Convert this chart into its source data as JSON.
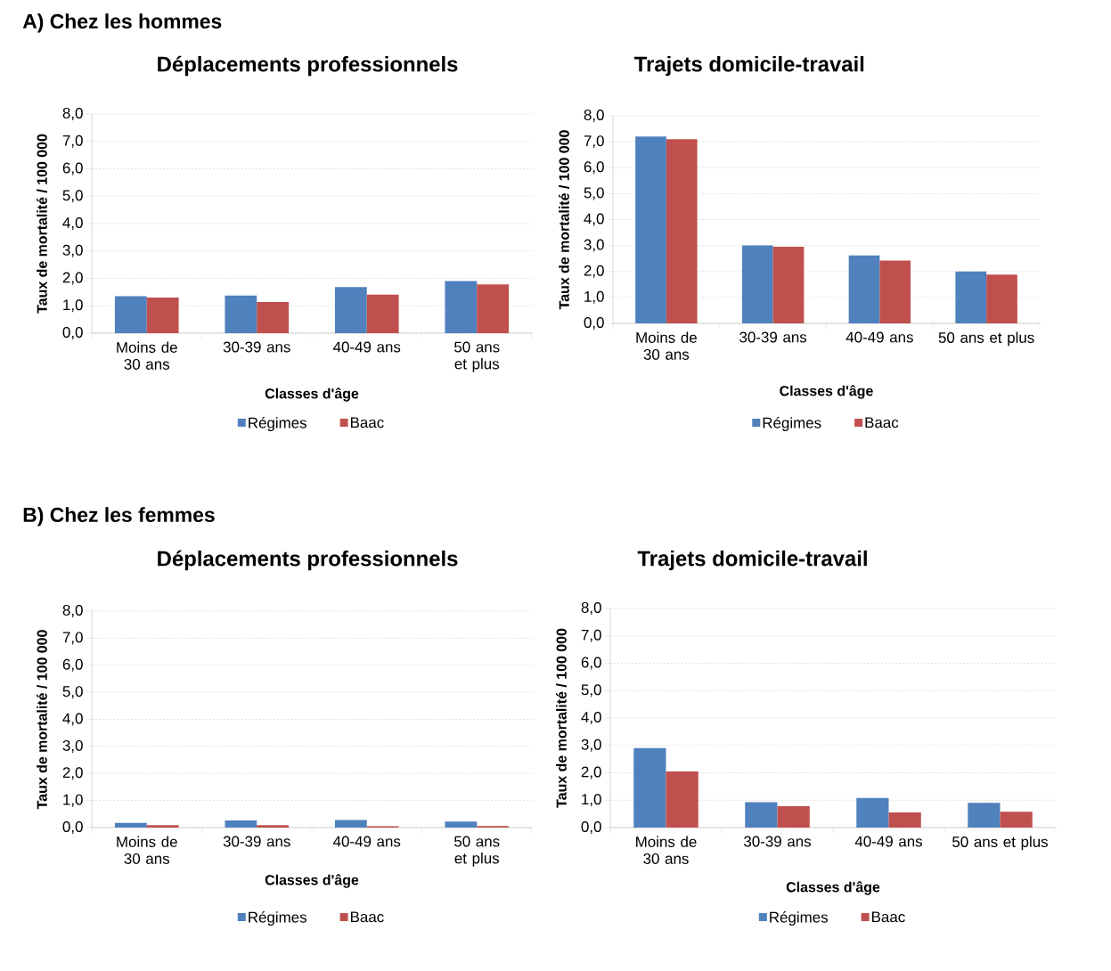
{
  "chart_data": [
    {
      "type": "bar",
      "annotations": [
        "A) Chez les hommes"
      ],
      "title": "Déplacements professionnels",
      "xlabel": "Classes d'âge",
      "ylabel": "Taux de mortalité / 100 000",
      "categories": [
        "Moins de 30 ans",
        "30-39 ans",
        "40-49 ans",
        "50 ans et plus"
      ],
      "ylim": [
        0,
        8
      ],
      "yticks": [
        {
          "value": 0,
          "label": "0,0"
        },
        {
          "value": 1,
          "label": "1,0"
        },
        {
          "value": 2,
          "label": "2,0"
        },
        {
          "value": 3,
          "label": "3,0"
        },
        {
          "value": 4,
          "label": "4,0"
        },
        {
          "value": 5,
          "label": "5,0"
        },
        {
          "value": 6,
          "label": "6,0"
        },
        {
          "value": 7,
          "label": "7,0"
        },
        {
          "value": 8,
          "label": "8,0"
        }
      ],
      "grid": "y",
      "legend": "bottom",
      "series": [
        {
          "name": "Régimes",
          "color": "#4f81bd",
          "values": [
            1.35,
            1.37,
            1.68,
            1.9
          ]
        },
        {
          "name": "Baac",
          "color": "#c0504d",
          "values": [
            1.3,
            1.14,
            1.41,
            1.78
          ]
        }
      ]
    },
    {
      "type": "bar",
      "title": "Trajets domicile-travail",
      "xlabel": "Classes d'âge",
      "ylabel": "Taux de mortalité / 100 000",
      "categories": [
        "Moins de 30 ans",
        "30-39 ans",
        "40-49 ans",
        "50 ans et plus"
      ],
      "ylim": [
        0,
        8
      ],
      "yticks": [
        {
          "value": 0,
          "label": "0,0"
        },
        {
          "value": 1,
          "label": "1,0"
        },
        {
          "value": 2,
          "label": "2,0"
        },
        {
          "value": 3,
          "label": "3,0"
        },
        {
          "value": 4,
          "label": "4,0"
        },
        {
          "value": 5,
          "label": "5,0"
        },
        {
          "value": 6,
          "label": "6,0"
        },
        {
          "value": 7,
          "label": "7,0"
        },
        {
          "value": 8,
          "label": "8,0"
        }
      ],
      "grid": "y",
      "legend": "bottom",
      "series": [
        {
          "name": "Régimes",
          "color": "#4f81bd",
          "values": [
            7.2,
            3.0,
            2.62,
            2.0
          ]
        },
        {
          "name": "Baac",
          "color": "#c0504d",
          "values": [
            7.1,
            2.95,
            2.42,
            1.88
          ]
        }
      ]
    },
    {
      "type": "bar",
      "annotations": [
        "B) Chez les femmes"
      ],
      "title": "Déplacements professionnels",
      "xlabel": "Classes d'âge",
      "ylabel": "Taux de mortalité / 100 000",
      "categories": [
        "Moins de 30 ans",
        "30-39 ans",
        "40-49 ans",
        "50 ans et plus"
      ],
      "ylim": [
        0,
        8
      ],
      "yticks": [
        {
          "value": 0,
          "label": "0,0"
        },
        {
          "value": 1,
          "label": "1,0"
        },
        {
          "value": 2,
          "label": "2,0"
        },
        {
          "value": 3,
          "label": "3,0"
        },
        {
          "value": 4,
          "label": "4,0"
        },
        {
          "value": 5,
          "label": "5,0"
        },
        {
          "value": 6,
          "label": "6,0"
        },
        {
          "value": 7,
          "label": "7,0"
        },
        {
          "value": 8,
          "label": "8,0"
        }
      ],
      "grid": "y",
      "legend": "bottom",
      "series": [
        {
          "name": "Régimes",
          "color": "#4f81bd",
          "values": [
            0.17,
            0.26,
            0.28,
            0.22
          ]
        },
        {
          "name": "Baac",
          "color": "#c0504d",
          "values": [
            0.09,
            0.09,
            0.05,
            0.06
          ]
        }
      ]
    },
    {
      "type": "bar",
      "title": "Trajets domicile-travail",
      "xlabel": "Classes d'âge",
      "ylabel": "Taux de mortalité / 100 000",
      "categories": [
        "Moins de 30 ans",
        "30-39 ans",
        "40-49 ans",
        "50 ans et plus"
      ],
      "ylim": [
        0,
        8
      ],
      "yticks": [
        {
          "value": 0,
          "label": "0,0"
        },
        {
          "value": 1,
          "label": "1,0"
        },
        {
          "value": 2,
          "label": "2,0"
        },
        {
          "value": 3,
          "label": "3,0"
        },
        {
          "value": 4,
          "label": "4,0"
        },
        {
          "value": 5,
          "label": "5,0"
        },
        {
          "value": 6,
          "label": "6,0"
        },
        {
          "value": 7,
          "label": "7,0"
        },
        {
          "value": 8,
          "label": "8,0"
        }
      ],
      "grid": "y",
      "legend": "bottom",
      "series": [
        {
          "name": "Régimes",
          "color": "#4f81bd",
          "values": [
            2.9,
            0.93,
            1.08,
            0.9
          ]
        },
        {
          "name": "Baac",
          "color": "#c0504d",
          "values": [
            2.05,
            0.78,
            0.55,
            0.58
          ]
        }
      ]
    }
  ]
}
